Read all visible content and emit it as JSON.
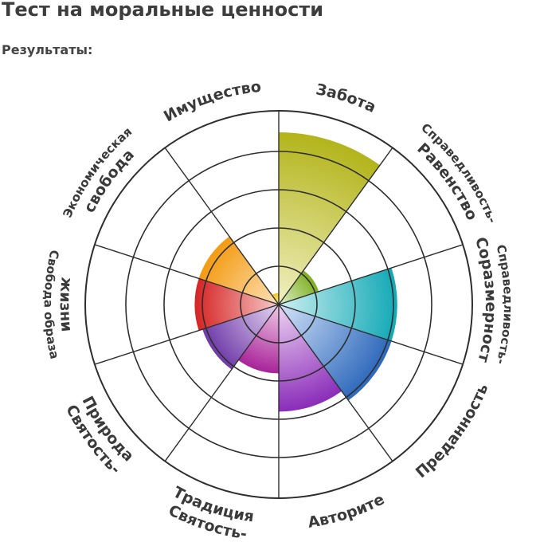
{
  "page": {
    "title": "Тест на моральные ценности",
    "results_label": "Результаты:"
  },
  "chart_data": {
    "type": "polar-area",
    "max_rings": 5,
    "grid": true,
    "categories": [
      {
        "lines": [
          "Забота"
        ],
        "value": 4.5,
        "color_in": "#f1f0c2",
        "color_out": "#b3b41a"
      },
      {
        "lines": [
          "Справедливость-",
          "Равенство"
        ],
        "value": 1.1,
        "color_in": "#dff1cc",
        "color_out": "#7fae1f"
      },
      {
        "lines": [
          "Справедливость-",
          "Соразмерность"
        ],
        "value": 3.1,
        "color_in": "#cdf0f1",
        "color_out": "#13a9b6"
      },
      {
        "lines": [
          "Преданность"
        ],
        "value": 3.1,
        "color_in": "#d3e3f8",
        "color_out": "#2d68bb"
      },
      {
        "lines": [
          "Авторите"
        ],
        "value": 2.8,
        "color_in": "#eed5f3",
        "color_out": "#8a2cb9"
      },
      {
        "lines": [
          "Святость-",
          "Традиция"
        ],
        "value": 1.8,
        "color_in": "#f1cbe6",
        "color_out": "#a8239a"
      },
      {
        "lines": [
          "Святость-",
          "Природа"
        ],
        "value": 2.1,
        "color_in": "#e4d5f1",
        "color_out": "#6f3aa8"
      },
      {
        "lines": [
          "Свобода образа",
          "жизни"
        ],
        "value": 2.2,
        "color_in": "#f7c9c9",
        "color_out": "#d62424"
      },
      {
        "lines": [
          "Экономическая",
          "свобода"
        ],
        "value": 2.2,
        "color_in": "#fde1b8",
        "color_out": "#f39b12"
      },
      {
        "lines": [
          "Имущество"
        ],
        "value": 0.3,
        "color_in": "#fdf0a8",
        "color_out": "#f2c41a"
      }
    ]
  }
}
